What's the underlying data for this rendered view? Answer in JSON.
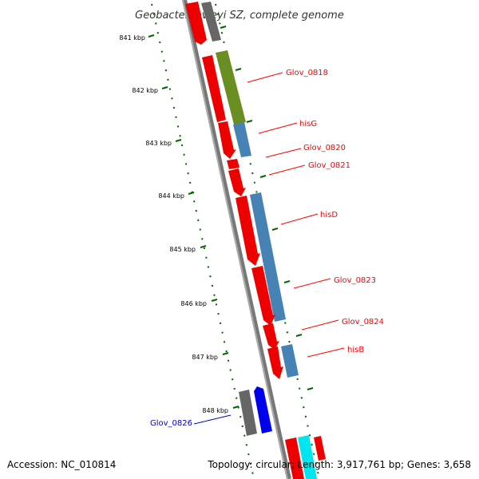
{
  "title": "Geobacter lovleyi SZ, complete genome",
  "footer": {
    "accession": "Accession: NC_010814",
    "topology": "Topology: circular; Length: 3,917,761 bp; Genes: 3,658"
  },
  "colors": {
    "label_red": "#ff0000",
    "label_blue": "#0000cc",
    "tick_green": "#006600",
    "backbone": "#888888"
  },
  "ticks": [
    {
      "label": "841 kbp",
      "kbp": 841
    },
    {
      "label": "842 kbp",
      "kbp": 842
    },
    {
      "label": "843 kbp",
      "kbp": 843
    },
    {
      "label": "844 kbp",
      "kbp": 844
    },
    {
      "label": "845 kbp",
      "kbp": 845
    },
    {
      "label": "846 kbp",
      "kbp": 846
    },
    {
      "label": "847 kbp",
      "kbp": 847
    },
    {
      "label": "848 kbp",
      "kbp": 848
    }
  ],
  "gene_labels": [
    {
      "label": "Glov_0818"
    },
    {
      "label": "hisG"
    },
    {
      "label": "Glov_0820"
    },
    {
      "label": "Glov_0821"
    },
    {
      "label": "hisD"
    },
    {
      "label": "Glov_0823"
    },
    {
      "label": "Glov_0824"
    },
    {
      "label": "hisB"
    },
    {
      "label": "Glov_0826"
    }
  ]
}
